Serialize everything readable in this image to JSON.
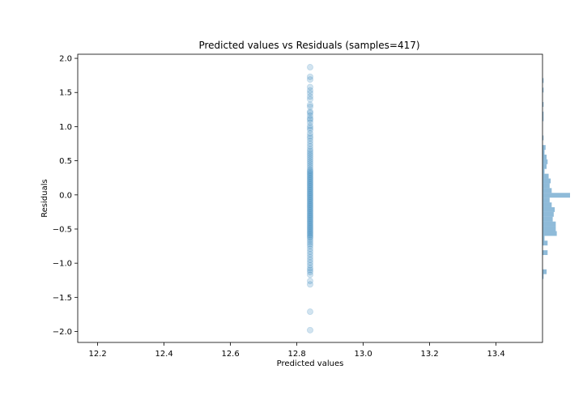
{
  "chart_data": {
    "type": "scatter",
    "title": "Predicted values vs Residuals (samples=417)",
    "xlabel": "Predicted values",
    "ylabel": "Residuals",
    "xlim": [
      12.14,
      13.54
    ],
    "ylim": [
      -2.16,
      2.06
    ],
    "x_ticks": [
      12.2,
      12.4,
      12.6,
      12.8,
      13.0,
      13.2,
      13.4
    ],
    "y_ticks": [
      -2.0,
      -1.5,
      -1.0,
      -0.5,
      0.0,
      0.5,
      1.0,
      1.5,
      2.0
    ],
    "grid": false,
    "point_color": "#1f77b4",
    "point_alpha": 0.2,
    "predicted_value": 12.84,
    "residuals": [
      1.87,
      1.73,
      1.69,
      1.58,
      1.53,
      1.49,
      1.44,
      1.4,
      1.32,
      1.29,
      1.22,
      1.2,
      1.16,
      1.12,
      1.1,
      1.06,
      1.01,
      0.98,
      0.95,
      0.9,
      0.86,
      0.83,
      0.79,
      0.75,
      0.71,
      0.67,
      0.64,
      0.61,
      0.58,
      0.55,
      0.52,
      0.49,
      0.46,
      0.43,
      0.4,
      0.37,
      0.35,
      0.33,
      0.31,
      0.29,
      0.27,
      0.25,
      0.23,
      0.21,
      0.19,
      0.17,
      0.15,
      0.13,
      0.11,
      0.09,
      0.07,
      0.05,
      0.03,
      0.01,
      -0.01,
      -0.03,
      -0.05,
      -0.07,
      -0.09,
      -0.11,
      -0.13,
      -0.15,
      -0.17,
      -0.19,
      -0.21,
      -0.23,
      -0.25,
      -0.27,
      -0.29,
      -0.31,
      -0.33,
      -0.35,
      -0.37,
      -0.39,
      -0.41,
      -0.43,
      -0.45,
      -0.47,
      -0.49,
      -0.51,
      -0.53,
      -0.55,
      -0.57,
      -0.59,
      -0.61,
      -0.63,
      -0.66,
      -0.69,
      -0.72,
      -0.75,
      -0.79,
      -0.83,
      -0.87,
      -0.91,
      -0.95,
      -0.99,
      -1.03,
      -1.07,
      -1.1,
      -1.13,
      -1.17,
      -1.26,
      -1.31,
      -1.71,
      -1.98
    ],
    "histogram": {
      "orientation": "horizontal",
      "color": "#1f77b4",
      "alpha": 0.5,
      "bin_edges": [
        -1.23,
        -1.16,
        -1.09,
        -1.02,
        -0.95,
        -0.88,
        -0.81,
        -0.74,
        -0.67,
        -0.6,
        -0.53,
        -0.46,
        -0.39,
        -0.32,
        -0.25,
        -0.18,
        -0.11,
        -0.04,
        0.03,
        0.1,
        0.17,
        0.24,
        0.31,
        0.38,
        0.45,
        0.52,
        0.59,
        0.66,
        0.73,
        0.8,
        0.87,
        0.94,
        1.01,
        1.08,
        1.15,
        1.22,
        1.29,
        1.36,
        1.43,
        1.5,
        1.57,
        1.64,
        1.71
      ],
      "counts": [
        1,
        4,
        0,
        0,
        0,
        5,
        0,
        5,
        2,
        14,
        13,
        13,
        10,
        11,
        12,
        9,
        7,
        27,
        9,
        7,
        8,
        6,
        2,
        4,
        5,
        4,
        2,
        3,
        0,
        1,
        0,
        0,
        0,
        1,
        1,
        0,
        1,
        0,
        0,
        1,
        0,
        1
      ]
    }
  }
}
